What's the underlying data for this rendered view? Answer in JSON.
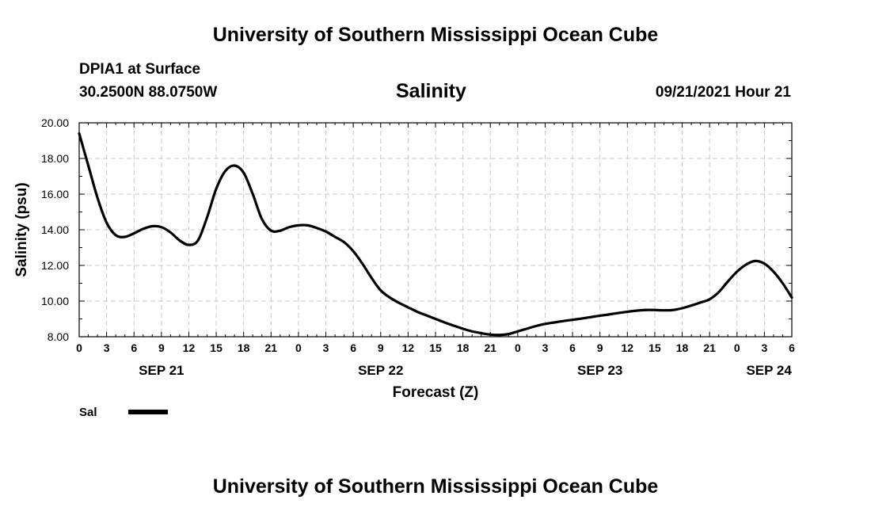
{
  "header": {
    "top_title": "University of Southern Mississippi Ocean Cube",
    "station": "DPIA1 at Surface",
    "coordinates": "30.2500N  88.0750W",
    "parameter": "Salinity",
    "datetime": "09/21/2021 Hour 21"
  },
  "footer": {
    "bottom_title": "University of Southern Mississippi Ocean Cube"
  },
  "chart_data": {
    "type": "line",
    "title": "Salinity",
    "xlabel": "Forecast (Z)",
    "ylabel": "Salinity (psu)",
    "xlim": [
      0,
      78
    ],
    "ylim": [
      8,
      20
    ],
    "y_ticks": [
      "8.00",
      "10.00",
      "12.00",
      "14.00",
      "16.00",
      "18.00",
      "20.00"
    ],
    "x_ticks": [
      {
        "h": 0,
        "label": "0"
      },
      {
        "h": 3,
        "label": "3"
      },
      {
        "h": 6,
        "label": "6"
      },
      {
        "h": 9,
        "label": "9"
      },
      {
        "h": 12,
        "label": "12"
      },
      {
        "h": 15,
        "label": "15"
      },
      {
        "h": 18,
        "label": "18"
      },
      {
        "h": 21,
        "label": "21"
      },
      {
        "h": 24,
        "label": "0"
      },
      {
        "h": 27,
        "label": "3"
      },
      {
        "h": 30,
        "label": "6"
      },
      {
        "h": 33,
        "label": "9"
      },
      {
        "h": 36,
        "label": "12"
      },
      {
        "h": 39,
        "label": "15"
      },
      {
        "h": 42,
        "label": "18"
      },
      {
        "h": 45,
        "label": "21"
      },
      {
        "h": 48,
        "label": "0"
      },
      {
        "h": 51,
        "label": "3"
      },
      {
        "h": 54,
        "label": "6"
      },
      {
        "h": 57,
        "label": "9"
      },
      {
        "h": 60,
        "label": "12"
      },
      {
        "h": 63,
        "label": "15"
      },
      {
        "h": 66,
        "label": "18"
      },
      {
        "h": 69,
        "label": "21"
      },
      {
        "h": 72,
        "label": "0"
      },
      {
        "h": 75,
        "label": "3"
      },
      {
        "h": 78,
        "label": "6"
      }
    ],
    "date_labels": [
      {
        "h": 9,
        "label": "SEP 21"
      },
      {
        "h": 33,
        "label": "SEP 22"
      },
      {
        "h": 57,
        "label": "SEP 23"
      },
      {
        "h": 75.5,
        "label": "SEP 24"
      }
    ],
    "grid": true,
    "legend": [
      {
        "name": "Sal",
        "color": "#000000"
      }
    ],
    "series": [
      {
        "name": "Sal",
        "color": "#000000",
        "points": [
          [
            0,
            19.4
          ],
          [
            1,
            17.6
          ],
          [
            2,
            15.8
          ],
          [
            3,
            14.4
          ],
          [
            4,
            13.7
          ],
          [
            5,
            13.6
          ],
          [
            6,
            13.8
          ],
          [
            7,
            14.05
          ],
          [
            8,
            14.2
          ],
          [
            9,
            14.15
          ],
          [
            10,
            13.85
          ],
          [
            11,
            13.4
          ],
          [
            12,
            13.15
          ],
          [
            13,
            13.4
          ],
          [
            14,
            14.7
          ],
          [
            15,
            16.3
          ],
          [
            16,
            17.3
          ],
          [
            17,
            17.6
          ],
          [
            18,
            17.2
          ],
          [
            19,
            16.0
          ],
          [
            20,
            14.6
          ],
          [
            21,
            13.95
          ],
          [
            22,
            13.95
          ],
          [
            23,
            14.15
          ],
          [
            24,
            14.25
          ],
          [
            25,
            14.25
          ],
          [
            26,
            14.1
          ],
          [
            27,
            13.9
          ],
          [
            28,
            13.6
          ],
          [
            29,
            13.3
          ],
          [
            30,
            12.8
          ],
          [
            31,
            12.1
          ],
          [
            32,
            11.3
          ],
          [
            33,
            10.6
          ],
          [
            34,
            10.2
          ],
          [
            35,
            9.9
          ],
          [
            36,
            9.65
          ],
          [
            37,
            9.4
          ],
          [
            38,
            9.2
          ],
          [
            39,
            9.0
          ],
          [
            40,
            8.8
          ],
          [
            41,
            8.62
          ],
          [
            42,
            8.45
          ],
          [
            43,
            8.3
          ],
          [
            44,
            8.2
          ],
          [
            45,
            8.12
          ],
          [
            46,
            8.1
          ],
          [
            47,
            8.15
          ],
          [
            48,
            8.3
          ],
          [
            49,
            8.45
          ],
          [
            50,
            8.6
          ],
          [
            51,
            8.72
          ],
          [
            52,
            8.8
          ],
          [
            53,
            8.88
          ],
          [
            54,
            8.95
          ],
          [
            55,
            9.02
          ],
          [
            56,
            9.1
          ],
          [
            57,
            9.18
          ],
          [
            58,
            9.25
          ],
          [
            59,
            9.33
          ],
          [
            60,
            9.4
          ],
          [
            61,
            9.46
          ],
          [
            62,
            9.5
          ],
          [
            63,
            9.5
          ],
          [
            64,
            9.48
          ],
          [
            65,
            9.5
          ],
          [
            66,
            9.6
          ],
          [
            67,
            9.75
          ],
          [
            68,
            9.92
          ],
          [
            69,
            10.1
          ],
          [
            70,
            10.5
          ],
          [
            71,
            11.1
          ],
          [
            72,
            11.65
          ],
          [
            73,
            12.05
          ],
          [
            74,
            12.25
          ],
          [
            75,
            12.1
          ],
          [
            76,
            11.65
          ],
          [
            77,
            11.0
          ],
          [
            78,
            10.2
          ]
        ]
      }
    ]
  }
}
